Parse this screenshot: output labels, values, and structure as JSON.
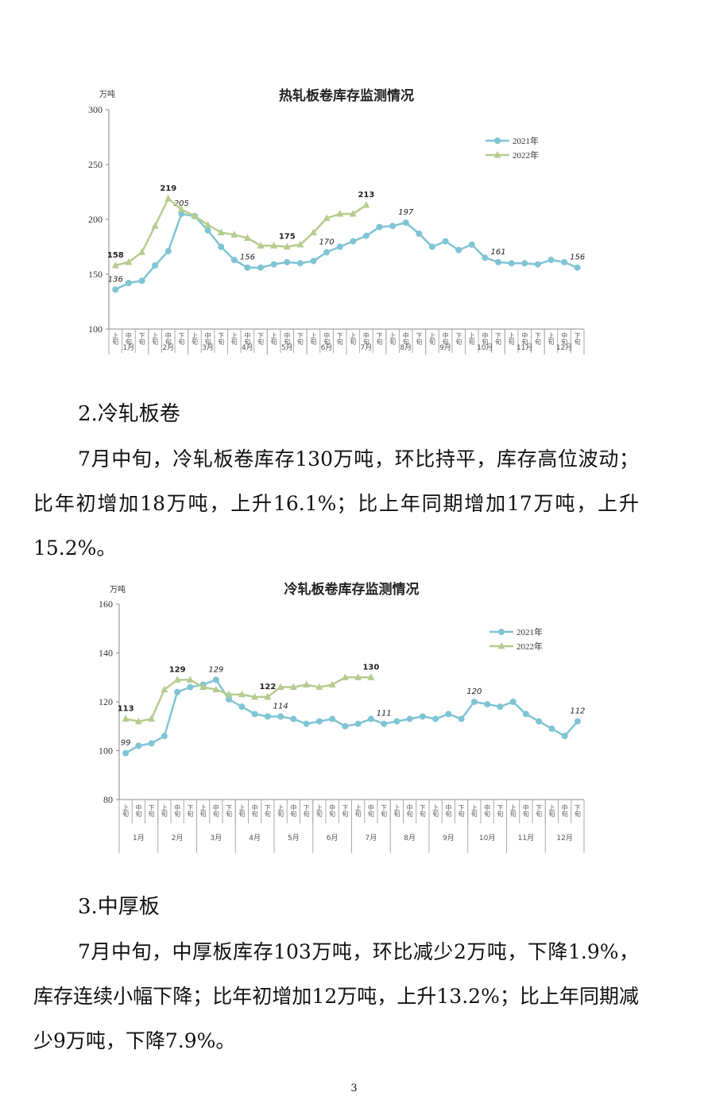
{
  "chart_data": [
    {
      "type": "line",
      "title": "热轧板卷库存监测情况",
      "y_unit": "万吨",
      "categories": [
        "上旬",
        "中旬",
        "下旬",
        "上旬",
        "中旬",
        "下旬",
        "上旬",
        "中旬",
        "下旬",
        "上旬",
        "中旬",
        "下旬",
        "上旬",
        "中旬",
        "下旬",
        "上旬",
        "中旬",
        "下旬",
        "上旬",
        "中旬",
        "下旬",
        "上旬",
        "中旬",
        "下旬",
        "上旬",
        "中旬",
        "下旬",
        "上旬",
        "中旬",
        "下旬",
        "上旬",
        "中旬",
        "下旬",
        "上旬",
        "中旬",
        "下旬"
      ],
      "months": [
        "1月",
        "2月",
        "3月",
        "4月",
        "5月",
        "6月",
        "7月",
        "8月",
        "9月",
        "10月",
        "11月",
        "12月"
      ],
      "ylim": [
        100,
        300
      ],
      "yticks": [
        100,
        150,
        200,
        250,
        300
      ],
      "legend": "upper right",
      "series": [
        {
          "name": "2021年",
          "color": "#7fc4d4",
          "marker": "circle",
          "values": [
            136,
            142,
            144,
            158,
            171,
            205,
            203,
            190,
            175,
            163,
            156,
            156,
            159,
            161,
            160,
            162,
            170,
            175,
            180,
            185,
            193,
            194,
            197,
            187,
            175,
            180,
            172,
            177,
            165,
            161,
            160,
            160,
            159,
            163,
            161,
            156
          ],
          "value_labels": [
            "136",
            null,
            null,
            null,
            null,
            "205",
            null,
            null,
            null,
            null,
            "156",
            null,
            null,
            null,
            null,
            null,
            "170",
            null,
            null,
            null,
            null,
            null,
            "197",
            null,
            null,
            null,
            null,
            null,
            null,
            "161",
            null,
            null,
            null,
            null,
            null,
            "156"
          ]
        },
        {
          "name": "2022年",
          "color": "#b5cc8e",
          "marker": "triangle",
          "values": [
            158,
            161,
            170,
            194,
            219,
            209,
            203,
            195,
            188,
            186,
            183,
            176,
            176,
            175,
            177,
            188,
            201,
            205,
            205,
            213,
            null,
            null,
            null,
            null,
            null,
            null,
            null,
            null,
            null,
            null,
            null,
            null,
            null,
            null,
            null,
            null
          ],
          "value_labels": [
            "158",
            null,
            null,
            null,
            "219",
            null,
            null,
            null,
            null,
            null,
            null,
            null,
            null,
            "175",
            null,
            null,
            null,
            null,
            null,
            "213",
            null,
            null,
            null,
            null,
            null,
            null,
            null,
            null,
            null,
            null,
            null,
            null,
            null,
            null,
            null,
            null
          ]
        }
      ]
    },
    {
      "type": "line",
      "title": "冷轧板卷库存监测情况",
      "y_unit": "万吨",
      "categories": [
        "上旬",
        "中旬",
        "下旬",
        "上旬",
        "中旬",
        "下旬",
        "上旬",
        "中旬",
        "下旬",
        "上旬",
        "中旬",
        "下旬",
        "上旬",
        "中旬",
        "下旬",
        "上旬",
        "中旬",
        "下旬",
        "上旬",
        "中旬",
        "下旬",
        "上旬",
        "中旬",
        "下旬",
        "上旬",
        "中旬",
        "下旬",
        "上旬",
        "中旬",
        "下旬",
        "上旬",
        "中旬",
        "下旬",
        "上旬",
        "中旬",
        "下旬"
      ],
      "months": [
        "1月",
        "2月",
        "3月",
        "4月",
        "5月",
        "6月",
        "7月",
        "8月",
        "9月",
        "10月",
        "11月",
        "12月"
      ],
      "ylim": [
        80,
        160
      ],
      "yticks": [
        80,
        100,
        120,
        140,
        160
      ],
      "legend": "upper right",
      "series": [
        {
          "name": "2021年",
          "color": "#7fc4d4",
          "marker": "circle",
          "values": [
            99,
            102,
            103,
            106,
            124,
            126,
            127,
            129,
            121,
            118,
            115,
            114,
            114,
            113,
            111,
            112,
            113,
            110,
            111,
            113,
            111,
            112,
            113,
            114,
            113,
            115,
            113,
            120,
            119,
            118,
            120,
            115,
            112,
            109,
            106,
            112
          ],
          "value_labels": [
            "99",
            null,
            null,
            null,
            null,
            null,
            null,
            "129",
            null,
            null,
            null,
            null,
            "114",
            null,
            null,
            null,
            null,
            null,
            null,
            null,
            "111",
            null,
            null,
            null,
            null,
            null,
            null,
            "120",
            null,
            null,
            null,
            null,
            null,
            null,
            null,
            "112"
          ]
        },
        {
          "name": "2022年",
          "color": "#b5cc8e",
          "marker": "triangle",
          "values": [
            113,
            112,
            113,
            125,
            129,
            129,
            126,
            125,
            123,
            123,
            122,
            122,
            126,
            126,
            127,
            126,
            127,
            130,
            130,
            130,
            null,
            null,
            null,
            null,
            null,
            null,
            null,
            null,
            null,
            null,
            null,
            null,
            null,
            null,
            null,
            null
          ],
          "value_labels": [
            "113",
            null,
            null,
            null,
            "129",
            null,
            null,
            null,
            null,
            null,
            null,
            "122",
            null,
            null,
            null,
            null,
            null,
            null,
            null,
            "130",
            null,
            null,
            null,
            null,
            null,
            null,
            null,
            null,
            null,
            null,
            null,
            null,
            null,
            null,
            null,
            null
          ]
        }
      ]
    }
  ],
  "sections": [
    {
      "heading": "2.冷轧板卷",
      "paragraph": "7月中旬，冷轧板卷库存130万吨，环比持平，库存高位波动；比年初增加18万吨，上升16.1%；比上年同期增加17万吨，上升15.2%。"
    },
    {
      "heading": "3.中厚板",
      "paragraph": "7月中旬，中厚板库存103万吨，环比减少2万吨，下降1.9%，库存连续小幅下降；比年初增加12万吨，上升13.2%；比上年同期减少9万吨，下降7.9%。"
    }
  ],
  "page_number": "3"
}
